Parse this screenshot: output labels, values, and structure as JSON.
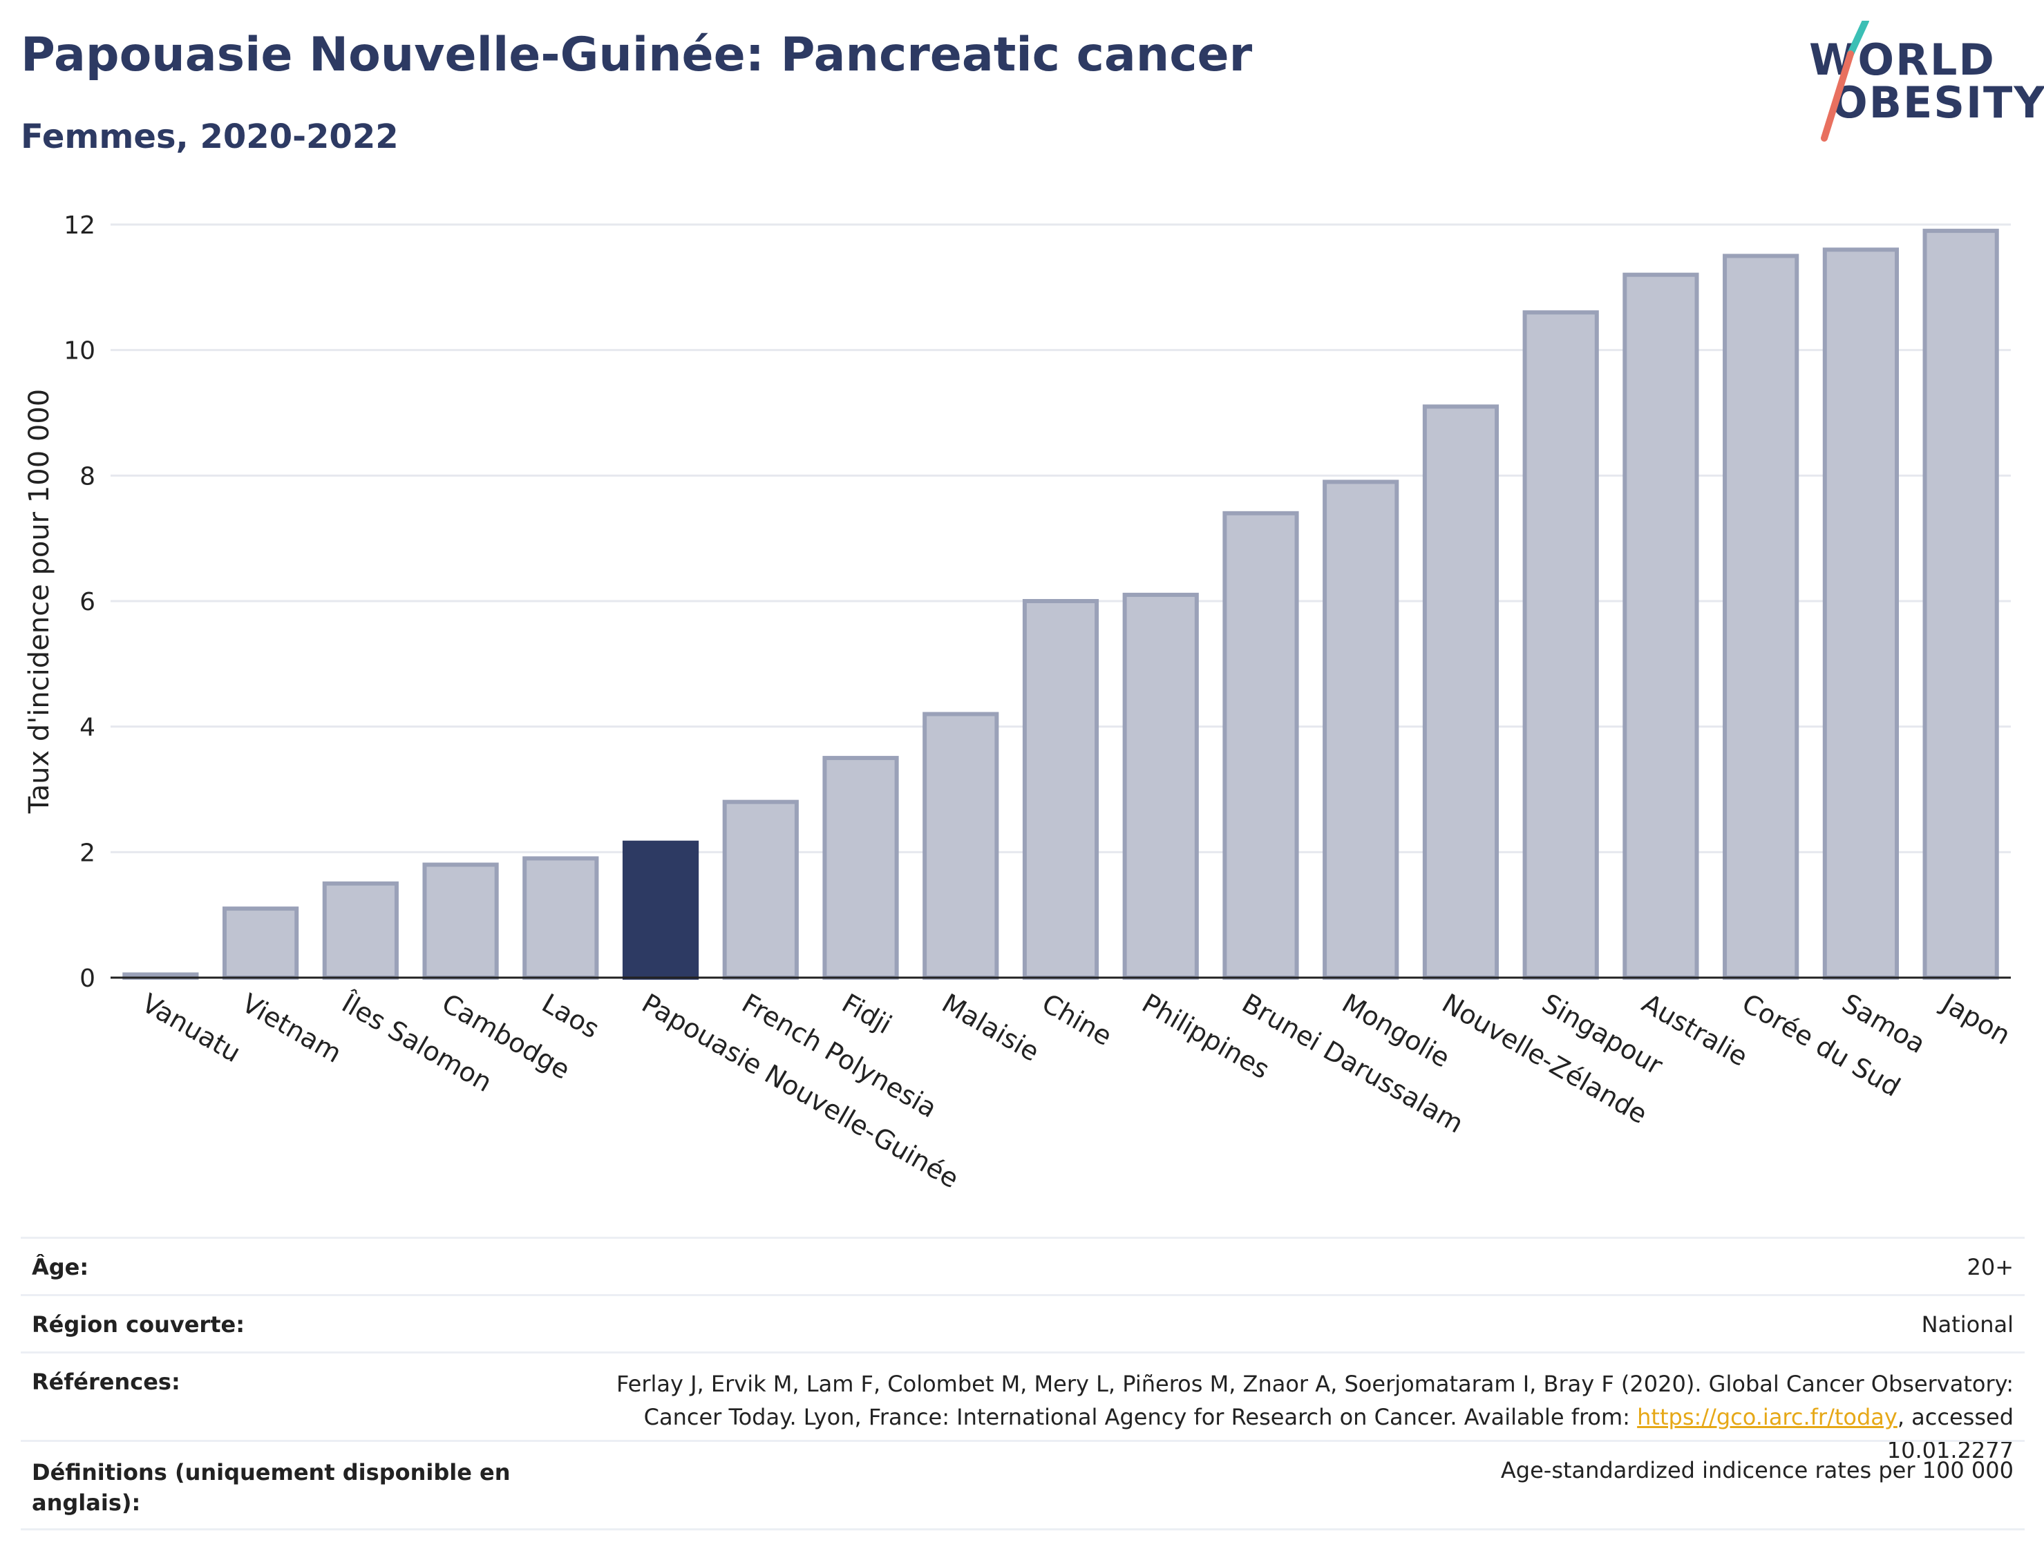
{
  "header": {
    "title": "Papouasie Nouvelle-Guinée: Pancreatic cancer",
    "subtitle": "Femmes, 2020-2022"
  },
  "logo": {
    "line1": "WORLD",
    "line2": "OBESITY",
    "accent_teal": "#3bbfb5",
    "accent_red": "#e8705f"
  },
  "colors": {
    "bar": "#bfc3d1",
    "bar_border": "#9aa1b8",
    "highlight": "#2d3a63",
    "grid": "#e6e8ee",
    "axis": "#222222"
  },
  "chart_data": {
    "type": "bar",
    "title": "Papouasie Nouvelle-Guinée: Pancreatic cancer",
    "subtitle": "Femmes, 2020-2022",
    "ylabel": "Taux d'incidence pour 100 000",
    "xlabel": "",
    "ylim": [
      0,
      12
    ],
    "yticks": [
      0,
      2,
      4,
      6,
      8,
      10,
      12
    ],
    "grid": true,
    "highlight": "Papouasie Nouvelle-Guinée",
    "categories": [
      "Vanuatu",
      "Vietnam",
      "Îles Salomon",
      "Cambodge",
      "Laos",
      "Papouasie Nouvelle-Guinée",
      "French Polynesia",
      "Fidji",
      "Malaisie",
      "Chine",
      "Philippines",
      "Brunei Darussalam",
      "Mongolie",
      "Nouvelle-Zélande",
      "Singapour",
      "Australie",
      "Corée du Sud",
      "Samoa",
      "Japon"
    ],
    "values": [
      0.05,
      1.1,
      1.5,
      1.8,
      1.9,
      2.15,
      2.8,
      3.5,
      4.2,
      6.0,
      6.1,
      7.4,
      7.9,
      9.1,
      10.6,
      11.2,
      11.5,
      11.6,
      11.9
    ]
  },
  "meta": {
    "age_label": "Âge:",
    "age_value": "20+",
    "region_label": "Région couverte:",
    "region_value": "National",
    "refs_label": "Références:",
    "refs_text_before": "Ferlay J, Ervik M, Lam F, Colombet M, Mery L, Piñeros M, Znaor A, Soerjomataram I, Bray F (2020). Global Cancer Observatory: Cancer Today. Lyon, France: International Agency for Research on Cancer. Available from: ",
    "refs_link": "https://gco.iarc.fr/today",
    "refs_text_after": ", accessed 10.01.2277",
    "defs_label": "Définitions (uniquement disponible en anglais):",
    "defs_value": "Age-standardized indicence rates per 100 000"
  }
}
